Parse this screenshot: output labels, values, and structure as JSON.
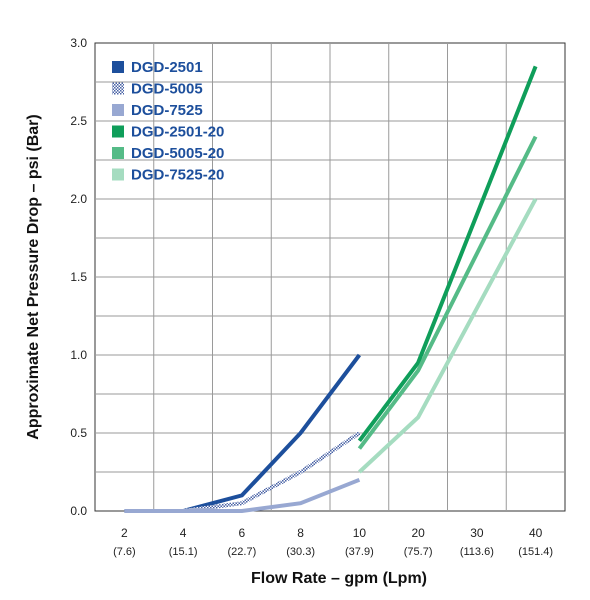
{
  "chart_data": {
    "type": "line",
    "xlabel": "Flow Rate – gpm (Lpm)",
    "ylabel": "Approximate Net Pressure Drop – psi (Bar)",
    "ylim": [
      0,
      3.0
    ],
    "y_ticks": [
      "0.0",
      "0.5",
      "1.0",
      "1.5",
      "2.0",
      "2.5",
      "3.0"
    ],
    "x_ticks": [
      {
        "gpm": "2",
        "lpm": "(7.6)"
      },
      {
        "gpm": "4",
        "lpm": "(15.1)"
      },
      {
        "gpm": "6",
        "lpm": "(22.7)"
      },
      {
        "gpm": "8",
        "lpm": "(30.3)"
      },
      {
        "gpm": "10",
        "lpm": "(37.9)"
      },
      {
        "gpm": "20",
        "lpm": "(75.7)"
      },
      {
        "gpm": "30",
        "lpm": "(113.6)"
      },
      {
        "gpm": "40",
        "lpm": "(151.4)"
      }
    ],
    "grid": true,
    "legend_position": "top-left",
    "series": [
      {
        "name": "DGD-2501",
        "color": "#1d4f9c",
        "pattern": "solid",
        "x": [
          2,
          4,
          6,
          8,
          10
        ],
        "y": [
          0.0,
          0.0,
          0.1,
          0.5,
          1.0
        ]
      },
      {
        "name": "DGD-5005",
        "color": "#5b73b0",
        "pattern": "textured",
        "x": [
          2,
          4,
          6,
          8,
          10
        ],
        "y": [
          0.0,
          0.0,
          0.05,
          0.25,
          0.5
        ]
      },
      {
        "name": "DGD-7525",
        "color": "#98a8d2",
        "pattern": "solid",
        "x": [
          2,
          4,
          6,
          8,
          10
        ],
        "y": [
          0.0,
          0.0,
          0.0,
          0.05,
          0.2
        ]
      },
      {
        "name": "DGD-2501-20",
        "color": "#0f9e5a",
        "pattern": "solid",
        "x": [
          10,
          20,
          30,
          40
        ],
        "y": [
          0.45,
          0.95,
          1.9,
          2.85
        ]
      },
      {
        "name": "DGD-5005-20",
        "color": "#55bb87",
        "pattern": "solid",
        "x": [
          10,
          20,
          30,
          40
        ],
        "y": [
          0.4,
          0.9,
          1.65,
          2.4
        ]
      },
      {
        "name": "DGD-7525-20",
        "color": "#a5dcc0",
        "pattern": "solid",
        "x": [
          10,
          20,
          30,
          40
        ],
        "y": [
          0.25,
          0.6,
          1.3,
          2.0
        ]
      }
    ]
  }
}
